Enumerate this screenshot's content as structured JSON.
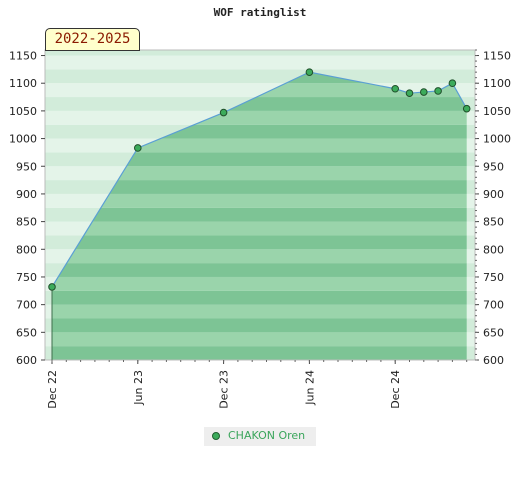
{
  "chart_data": {
    "type": "area",
    "title": "WOF ratinglist",
    "period_label": "2022-2025",
    "x_tick_labels": [
      "Dec 22",
      "Jun 23",
      "Dec 23",
      "Jun 24",
      "Dec 24"
    ],
    "y_ticks": [
      600,
      650,
      700,
      750,
      800,
      850,
      900,
      950,
      1000,
      1050,
      1100,
      1150
    ],
    "ylim": [
      600,
      1160
    ],
    "series": [
      {
        "name": "CHAKON Oren",
        "points": [
          {
            "x": "2022-12",
            "y": 732
          },
          {
            "x": "2023-06",
            "y": 983
          },
          {
            "x": "2023-12",
            "y": 1047
          },
          {
            "x": "2024-06",
            "y": 1120
          },
          {
            "x": "2024-12",
            "y": 1090
          },
          {
            "x": "2025-01",
            "y": 1082
          },
          {
            "x": "2025-02",
            "y": 1084
          },
          {
            "x": "2025-03",
            "y": 1086
          },
          {
            "x": "2025-04",
            "y": 1100
          },
          {
            "x": "2025-05",
            "y": 1054
          }
        ]
      }
    ],
    "grid": true,
    "legend_position": "bottom-center",
    "colors": {
      "line": "#5a9fd4",
      "marker": "#3cab5b",
      "fill_band_a": "#7dc495",
      "fill_band_b": "#9ad4ab",
      "background_band_a": "#d2ecda",
      "background_band_b": "#e4f4e9"
    }
  }
}
